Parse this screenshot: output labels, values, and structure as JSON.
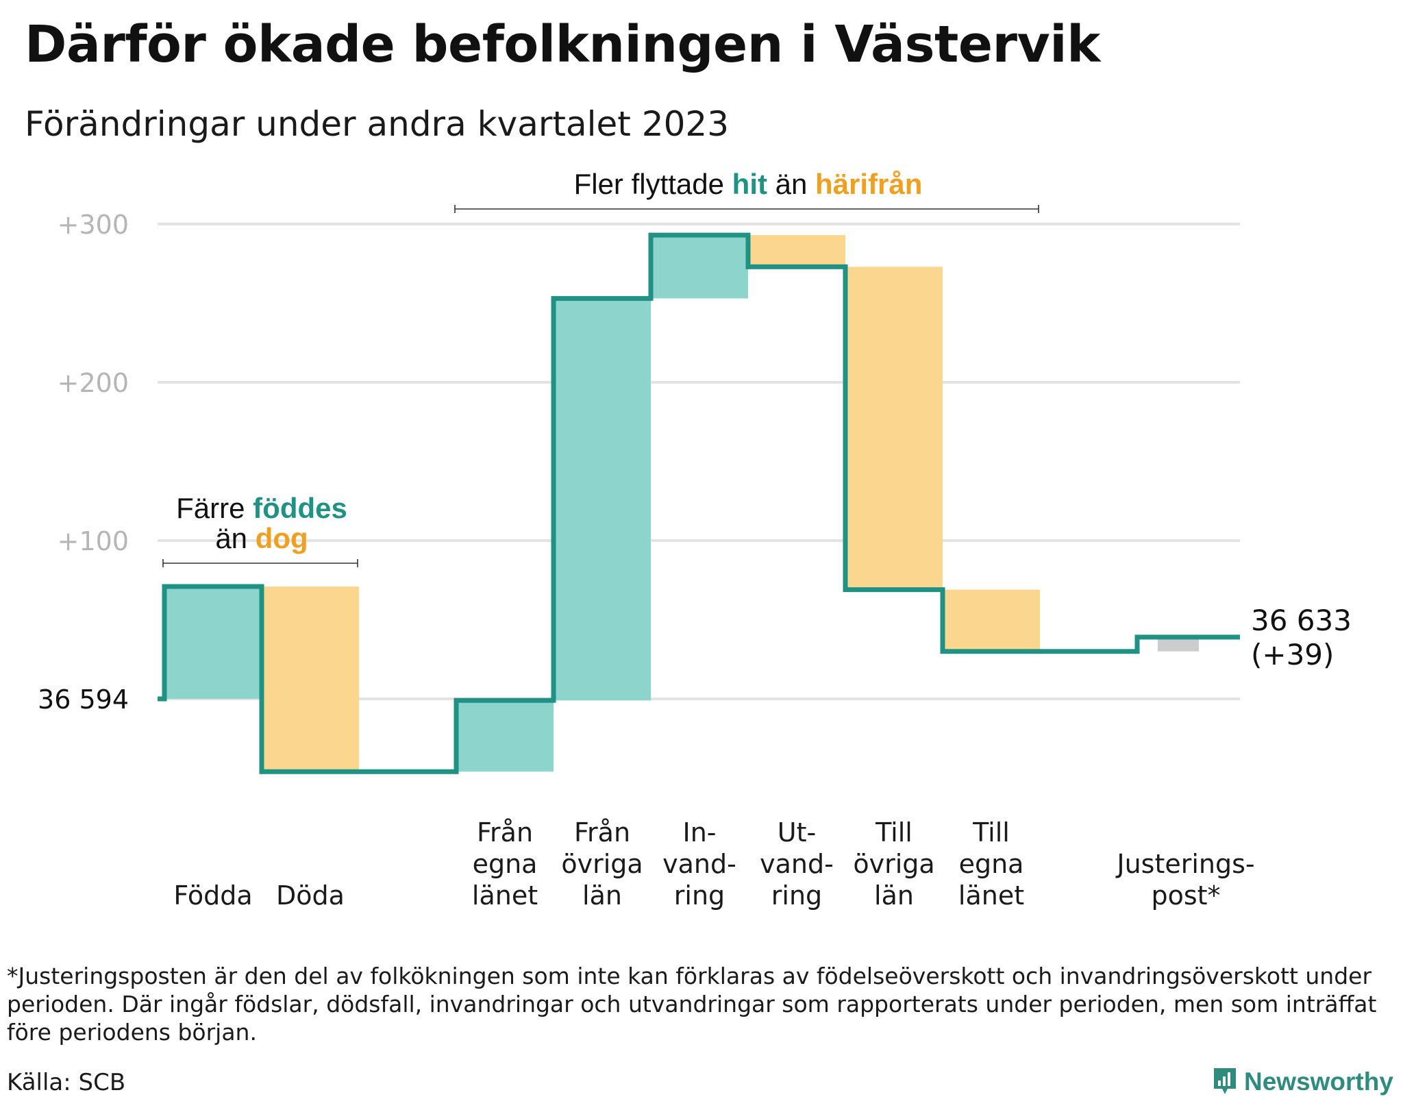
{
  "title": "Därför ökade befolkningen i Västervik",
  "subtitle": "Förändringar under andra kvartalet 2023",
  "footnote": "*Justeringsposten är den del av folkökningen som inte kan förklaras av födelseöverskott och invandringsöverskott under perioden. Där ingår födslar, dödsfall, invandringar och utvandringar som rapporterats under perioden, men som inträffat före periodens början.",
  "source": "Källa: SCB",
  "brand": "Newsworthy",
  "colors": {
    "increase": "#8dd4cc",
    "decrease": "#fad68e",
    "adjust": "#cccccc",
    "line": "#1f9283",
    "teal_text": "#1f9283",
    "orange_text": "#f0a020",
    "grid": "#e3e3e3",
    "axis_text": "#b5b5b5"
  },
  "chart_data": {
    "type": "waterfall",
    "baseline": {
      "value": 36594,
      "label": "36  594"
    },
    "end": {
      "value": 36633,
      "label": "36 633",
      "change_label": "(+39)"
    },
    "y_ticks": [
      {
        "value": 100,
        "label": "+100"
      },
      {
        "value": 200,
        "label": "+200"
      },
      {
        "value": 300,
        "label": "+300"
      }
    ],
    "ylim": [
      -50,
      300
    ],
    "steps": [
      {
        "key": "fodda",
        "label_lines": [
          "Födda"
        ],
        "change": 71,
        "kind": "increase"
      },
      {
        "key": "doda",
        "label_lines": [
          "Döda"
        ],
        "change": -117,
        "kind": "decrease"
      },
      {
        "key": "gap",
        "label_lines": [],
        "change": 0,
        "kind": "gap"
      },
      {
        "key": "fran_egna",
        "label_lines": [
          "Från",
          "egna",
          "länet"
        ],
        "change": 45,
        "kind": "increase"
      },
      {
        "key": "fran_ovriga",
        "label_lines": [
          "Från",
          "övriga",
          "län"
        ],
        "change": 254,
        "kind": "increase"
      },
      {
        "key": "invandring",
        "label_lines": [
          "In-",
          "vand-",
          "ring"
        ],
        "change": 40,
        "kind": "increase"
      },
      {
        "key": "utvandring",
        "label_lines": [
          "Ut-",
          "vand-",
          "ring"
        ],
        "change": -20,
        "kind": "decrease"
      },
      {
        "key": "till_ovriga",
        "label_lines": [
          "Till",
          "övriga",
          "län"
        ],
        "change": -204,
        "kind": "decrease"
      },
      {
        "key": "till_egna",
        "label_lines": [
          "Till",
          "egna",
          "länet"
        ],
        "change": -39,
        "kind": "decrease"
      },
      {
        "key": "gap2",
        "label_lines": [],
        "change": 0,
        "kind": "gap"
      },
      {
        "key": "justering",
        "label_lines": [
          "Justerings-",
          "post*"
        ],
        "change": 9,
        "kind": "adjust"
      }
    ],
    "annotations": [
      {
        "key": "births",
        "parts": [
          [
            {
              "text": "Färre ",
              "color": "plain"
            },
            {
              "text": "föddes",
              "color": "teal"
            }
          ],
          [
            {
              "text": "än ",
              "color": "plain"
            },
            {
              "text": "dog",
              "color": "orange"
            }
          ]
        ],
        "from_step": 0,
        "to_step": 1
      },
      {
        "key": "moves",
        "parts": [
          [
            {
              "text": "Fler flyttade ",
              "color": "plain"
            },
            {
              "text": "hit",
              "color": "teal"
            },
            {
              "text": "  än ",
              "color": "plain"
            },
            {
              "text": "härifrån",
              "color": "orange"
            }
          ]
        ],
        "from_step": 3,
        "to_step": 8
      }
    ]
  }
}
